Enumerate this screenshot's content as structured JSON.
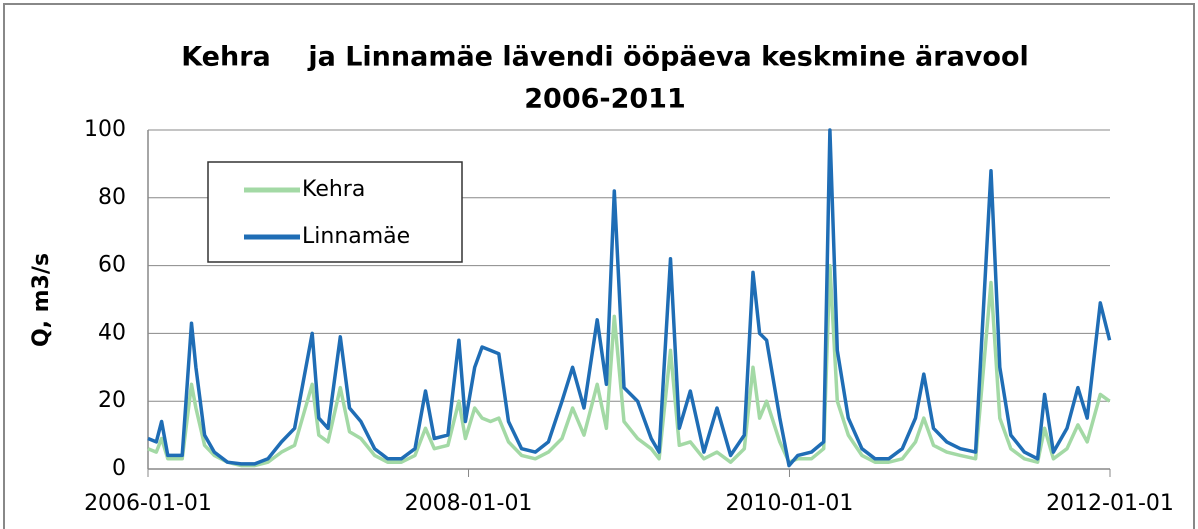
{
  "chart_data": {
    "type": "line",
    "title": "Kehra    ja Linnamäe lävendi ööpäeva keskmine äravool",
    "subtitle": "2006-2011",
    "y_label": "Q, m3/s",
    "x": [
      "2006-01-01",
      "2006-01-20",
      "2006-02-01",
      "2006-02-15",
      "2006-03-20",
      "2006-04-10",
      "2006-04-20",
      "2006-05-10",
      "2006-06-01",
      "2006-07-01",
      "2006-08-01",
      "2006-09-01",
      "2006-10-01",
      "2006-11-01",
      "2006-12-01",
      "2007-01-10",
      "2007-01-25",
      "2007-02-15",
      "2007-03-15",
      "2007-04-05",
      "2007-05-01",
      "2007-06-01",
      "2007-07-01",
      "2007-08-01",
      "2007-09-01",
      "2007-09-25",
      "2007-10-15",
      "2007-11-15",
      "2007-12-10",
      "2007-12-25",
      "2008-01-15",
      "2008-02-01",
      "2008-02-20",
      "2008-03-10",
      "2008-04-01",
      "2008-05-01",
      "2008-06-01",
      "2008-07-01",
      "2008-08-01",
      "2008-08-25",
      "2008-09-20",
      "2008-10-20",
      "2008-11-10",
      "2008-11-28",
      "2008-12-20",
      "2009-01-20",
      "2009-02-20",
      "2009-03-10",
      "2009-04-05",
      "2009-04-25",
      "2009-05-20",
      "2009-06-20",
      "2009-07-20",
      "2009-08-20",
      "2009-09-20",
      "2009-10-10",
      "2009-10-25",
      "2009-11-10",
      "2009-12-10",
      "2009-12-31",
      "2010-01-20",
      "2010-02-20",
      "2010-03-20",
      "2010-04-03",
      "2010-04-20",
      "2010-05-15",
      "2010-06-15",
      "2010-07-15",
      "2010-08-15",
      "2010-09-15",
      "2010-10-15",
      "2010-11-03",
      "2010-11-25",
      "2010-12-25",
      "2011-01-25",
      "2011-03-01",
      "2011-04-05",
      "2011-04-25",
      "2011-05-20",
      "2011-06-20",
      "2011-07-20",
      "2011-08-05",
      "2011-08-25",
      "2011-09-25",
      "2011-10-20",
      "2011-11-10",
      "2011-12-10",
      "2011-12-31"
    ],
    "series": [
      {
        "name": "Kehra",
        "color": "#a3d9a5",
        "values": [
          6,
          5,
          9,
          3,
          3,
          25,
          18,
          7,
          4,
          2,
          1,
          1,
          2,
          5,
          7,
          25,
          10,
          8,
          24,
          11,
          9,
          4,
          2,
          2,
          4,
          12,
          6,
          7,
          20,
          9,
          18,
          15,
          14,
          15,
          8,
          4,
          3,
          5,
          9,
          18,
          10,
          25,
          12,
          45,
          14,
          9,
          6,
          3,
          35,
          7,
          8,
          3,
          5,
          2,
          6,
          30,
          15,
          20,
          8,
          2,
          3,
          3,
          6,
          60,
          20,
          10,
          4,
          2,
          2,
          3,
          8,
          15,
          7,
          5,
          4,
          3,
          55,
          15,
          6,
          3,
          2,
          12,
          3,
          6,
          13,
          8,
          22,
          20
        ]
      },
      {
        "name": "Linnamäe",
        "color": "#1f6db5",
        "values": [
          9,
          8,
          14,
          4,
          4,
          43,
          30,
          10,
          5,
          2,
          1.5,
          1.5,
          3,
          8,
          12,
          40,
          15,
          12,
          39,
          18,
          14,
          6,
          3,
          3,
          6,
          23,
          9,
          10,
          38,
          14,
          30,
          36,
          35,
          34,
          14,
          6,
          5,
          8,
          20,
          30,
          18,
          44,
          25,
          82,
          24,
          20,
          9,
          5,
          62,
          12,
          23,
          5,
          18,
          4,
          10,
          58,
          40,
          38,
          15,
          1,
          4,
          5,
          8,
          100,
          35,
          15,
          6,
          3,
          3,
          6,
          15,
          28,
          12,
          8,
          6,
          5,
          88,
          30,
          10,
          5,
          3,
          22,
          5,
          12,
          24,
          15,
          49,
          38
        ]
      }
    ],
    "xlim": [
      "2006-01-01",
      "2012-01-01"
    ],
    "xticks": [
      "2006-01-01",
      "2008-01-01",
      "2010-01-01",
      "2012-01-01"
    ],
    "ylim": [
      0,
      100
    ],
    "yticks": [
      0,
      20,
      40,
      60,
      80,
      100
    ],
    "grid": true,
    "legend": "upper left"
  }
}
